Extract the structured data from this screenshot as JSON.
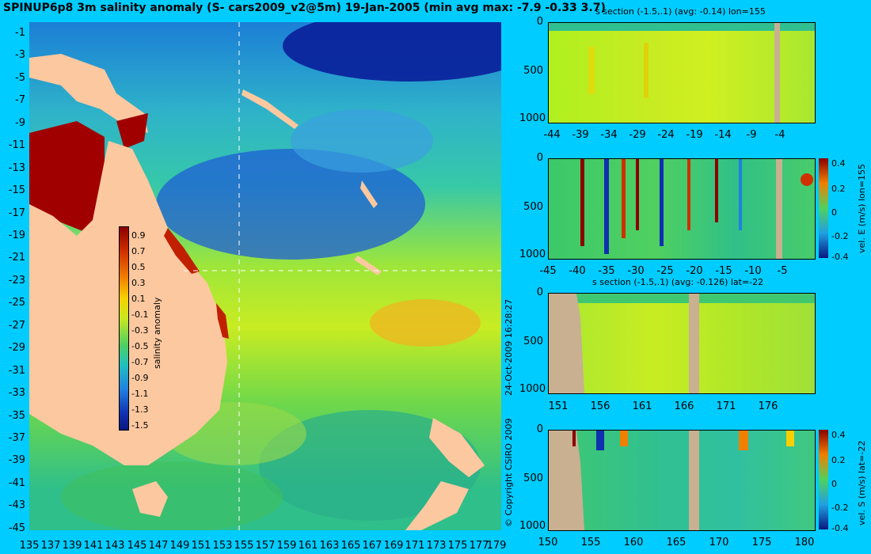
{
  "title": "SPINUP6p8 3m salinity anomaly (S- cars2009_v2@5m) 19-Jan-2005 (min avg max: -7.9 -0.33 3.7)",
  "map": {
    "y_ticks": [
      "-1",
      "-3",
      "-5",
      "-7",
      "-9",
      "-11",
      "-13",
      "-15",
      "-17",
      "-19",
      "-21",
      "-23",
      "-25",
      "-27",
      "-29",
      "-31",
      "-33",
      "-35",
      "-37",
      "-39",
      "-41",
      "-43",
      "-45"
    ],
    "x_ticks": [
      "135",
      "137",
      "139",
      "141",
      "143",
      "145",
      "147",
      "149",
      "151",
      "153",
      "155",
      "157",
      "159",
      "161",
      "163",
      "165",
      "167",
      "169",
      "171",
      "173",
      "175",
      "177",
      "179"
    ],
    "colorbar_ticks": [
      "0.9",
      "0.7",
      "0.5",
      "0.3",
      "0.1",
      "-0.1",
      "-0.3",
      "-0.5",
      "-0.7",
      "-0.9",
      "-1.1",
      "-1.3",
      "-1.5"
    ],
    "colorbar_label": "salinity anomaly"
  },
  "side_texts": {
    "timestamp": "24-Oct-2009 16:28:27",
    "copyright": "© Copyright CSIRO 2009"
  },
  "panels": {
    "p1": {
      "title": "s section (-1.5,.1) (avg: -0.14) lon=155",
      "x_ticks": [
        "-44",
        "-39",
        "-34",
        "-29",
        "-24",
        "-19",
        "-14",
        "-9",
        "-4"
      ],
      "y_ticks": [
        "0",
        "500",
        "1000"
      ]
    },
    "p2": {
      "x_ticks": [
        "-45",
        "-40",
        "-35",
        "-30",
        "-25",
        "-20",
        "-15",
        "-10",
        "-5"
      ],
      "y_ticks": [
        "0",
        "500",
        "1000"
      ],
      "cbar_ticks": [
        "0.4",
        "0.2",
        "0",
        "-0.2",
        "-0.4"
      ],
      "cbar_label": "vel. E (m/s) lon=155"
    },
    "p3": {
      "title": "s section (-1.5,.1) (avg: -0.126) lat=-22",
      "x_ticks": [
        "151",
        "156",
        "161",
        "166",
        "171",
        "176"
      ],
      "y_ticks": [
        "0",
        "500",
        "1000"
      ]
    },
    "p4": {
      "x_ticks": [
        "150",
        "155",
        "160",
        "165",
        "170",
        "175",
        "180"
      ],
      "y_ticks": [
        "0",
        "500",
        "1000"
      ],
      "cbar_ticks": [
        "0.4",
        "0.2",
        "0",
        "-0.2",
        "-0.4"
      ],
      "cbar_label": "vel. S (m/s) lat=-22"
    }
  },
  "colors": {
    "land": "#fcc8a0",
    "topo": "#c8b090",
    "background": "#00ccff"
  }
}
